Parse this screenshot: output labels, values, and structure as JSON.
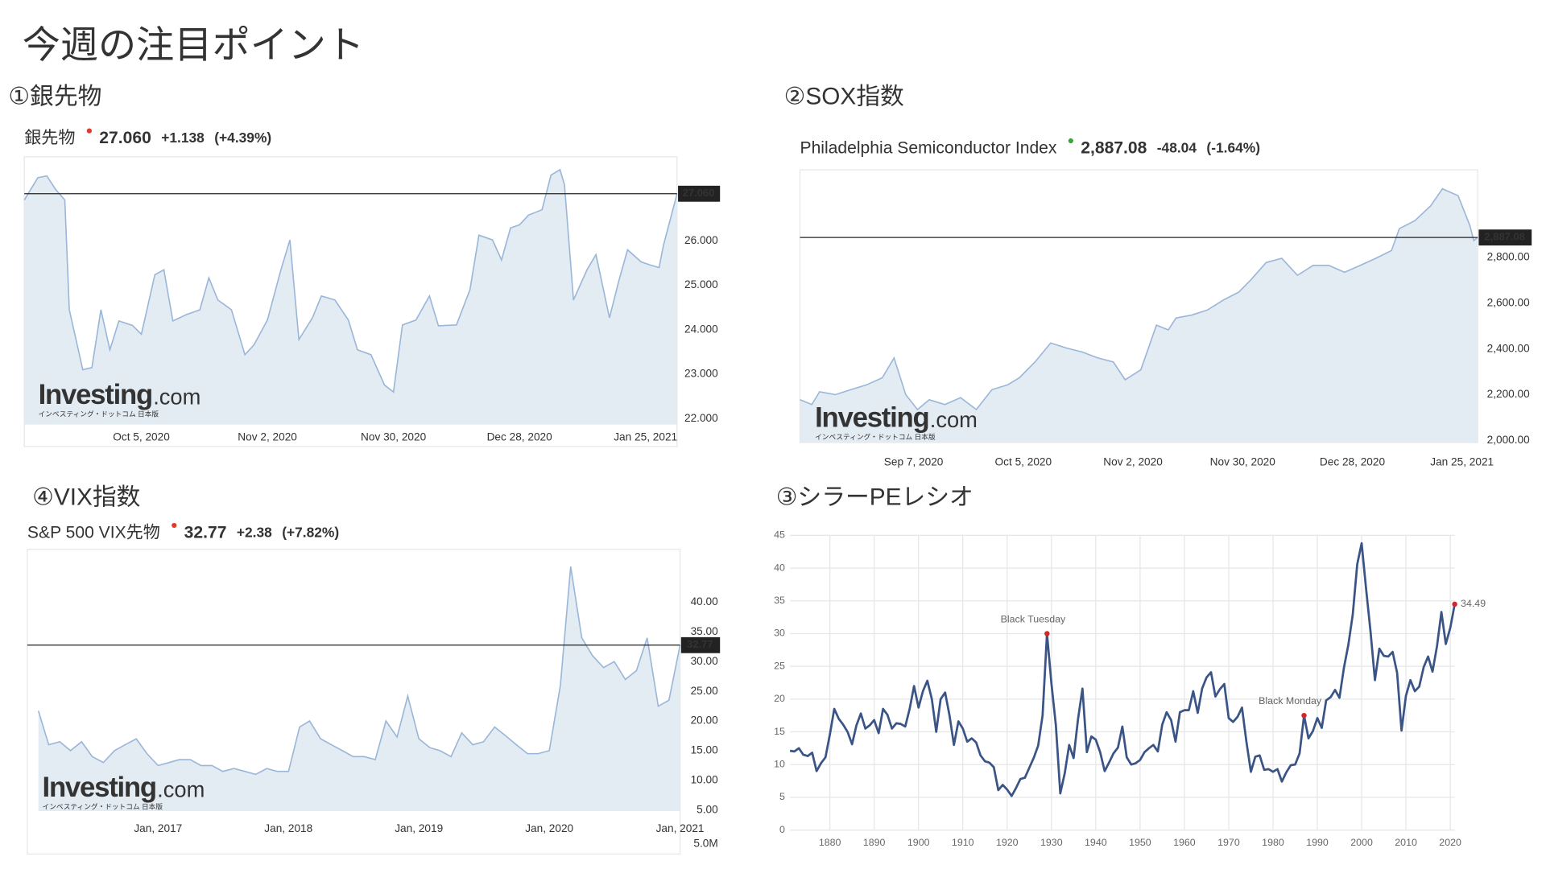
{
  "title": "今週の注目ポイント",
  "chart_data": [
    {
      "type": "area",
      "heading": "①銀先物",
      "name": "銀先物",
      "last": {
        "value": 27.06,
        "label": "27.060"
      },
      "change": {
        "value": 1.138,
        "label": "+1.138"
      },
      "change_pct": {
        "value": 4.39,
        "label": "(+4.39%)"
      },
      "change_color": "#e03a2f",
      "watermark": [
        "Investing",
        ".com",
        "インベスティング・ドットコム 日本版"
      ],
      "x": [
        "2020-09-09",
        "2020-09-12",
        "2020-09-14",
        "2020-09-16",
        "2020-09-18",
        "2020-09-19",
        "2020-09-22",
        "2020-09-24",
        "2020-09-26",
        "2020-09-28",
        "2020-09-30",
        "2020-10-03",
        "2020-10-05",
        "2020-10-08",
        "2020-10-10",
        "2020-10-12",
        "2020-10-15",
        "2020-10-18",
        "2020-10-20",
        "2020-10-22",
        "2020-10-25",
        "2020-10-28",
        "2020-10-30",
        "2020-11-02",
        "2020-11-05",
        "2020-11-07",
        "2020-11-09",
        "2020-11-12",
        "2020-11-14",
        "2020-11-17",
        "2020-11-20",
        "2020-11-22",
        "2020-11-25",
        "2020-11-28",
        "2020-11-30",
        "2020-12-02",
        "2020-12-05",
        "2020-12-08",
        "2020-12-10",
        "2020-12-14",
        "2020-12-17",
        "2020-12-19",
        "2020-12-22",
        "2020-12-24",
        "2020-12-26",
        "2020-12-28",
        "2020-12-30",
        "2021-01-02",
        "2021-01-04",
        "2021-01-06",
        "2021-01-07",
        "2021-01-09",
        "2021-01-12",
        "2021-01-14",
        "2021-01-17",
        "2021-01-19",
        "2021-01-21",
        "2021-01-24",
        "2021-01-26",
        "2021-01-28",
        "2021-01-29",
        "2021-02-01"
      ],
      "values": [
        26.92,
        27.42,
        27.46,
        27.15,
        26.92,
        24.45,
        23.1,
        23.15,
        24.45,
        23.55,
        24.2,
        24.1,
        23.9,
        25.24,
        25.35,
        24.2,
        24.34,
        24.45,
        25.17,
        24.67,
        24.45,
        23.44,
        23.66,
        24.22,
        25.35,
        26.02,
        23.78,
        24.27,
        24.76,
        24.67,
        24.22,
        23.55,
        23.44,
        22.76,
        22.6,
        24.11,
        24.22,
        24.76,
        24.09,
        24.11,
        24.9,
        26.13,
        26.02,
        25.57,
        26.29,
        26.36,
        26.58,
        26.7,
        27.48,
        27.6,
        27.26,
        24.67,
        25.35,
        25.69,
        24.27,
        25.08,
        25.8,
        25.53,
        25.46,
        25.4,
        25.91,
        27.06
      ],
      "color": "#9ab6d8",
      "fill": "#e3ebf3",
      "grid": false,
      "xlim": [
        "2020-09-09",
        "2021-02-01"
      ],
      "ylim": [
        21.87,
        27.89
      ],
      "yticks": [
        {
          "value": 22,
          "label": "22.000"
        },
        {
          "value": 23,
          "label": "23.000"
        },
        {
          "value": 24,
          "label": "24.000"
        },
        {
          "value": 25,
          "label": "25.000"
        },
        {
          "value": 26,
          "label": "26.000"
        }
      ],
      "xticks": [
        {
          "value": "2020-10-05",
          "label": "Oct 5, 2020"
        },
        {
          "value": "2020-11-02",
          "label": "Nov 2, 2020"
        },
        {
          "value": "2020-11-30",
          "label": "Nov 30, 2020"
        },
        {
          "value": "2020-12-28",
          "label": "Dec 28, 2020"
        },
        {
          "value": "2021-01-25",
          "label": "Jan 25, 2021"
        }
      ]
    },
    {
      "type": "area",
      "heading": "②SOX指数",
      "name": "Philadelphia Semiconductor Index",
      "last": {
        "value": 2887.08,
        "label": "2,887.08"
      },
      "change": {
        "value": -48.04,
        "label": "-48.04"
      },
      "change_pct": {
        "value": -1.64,
        "label": "(-1.64%)"
      },
      "change_color": "#3aa53a",
      "watermark": [
        "Investing",
        ".com",
        "インベスティング・ドットコム 日本版"
      ],
      "x": [
        "2020-08-09",
        "2020-08-12",
        "2020-08-14",
        "2020-08-18",
        "2020-08-22",
        "2020-08-26",
        "2020-08-30",
        "2020-09-02",
        "2020-09-05",
        "2020-09-08",
        "2020-09-11",
        "2020-09-15",
        "2020-09-19",
        "2020-09-23",
        "2020-09-27",
        "2020-10-01",
        "2020-10-04",
        "2020-10-08",
        "2020-10-12",
        "2020-10-16",
        "2020-10-20",
        "2020-10-24",
        "2020-10-28",
        "2020-10-31",
        "2020-11-04",
        "2020-11-08",
        "2020-11-11",
        "2020-11-13",
        "2020-11-17",
        "2020-11-21",
        "2020-11-25",
        "2020-11-29",
        "2020-12-02",
        "2020-12-06",
        "2020-12-10",
        "2020-12-14",
        "2020-12-18",
        "2020-12-22",
        "2020-12-26",
        "2020-12-30",
        "2021-01-03",
        "2021-01-07",
        "2021-01-09",
        "2021-01-13",
        "2021-01-17",
        "2021-01-20",
        "2021-01-24",
        "2021-01-27",
        "2021-01-28",
        "2021-01-29"
      ],
      "values": [
        2178,
        2157,
        2213,
        2200,
        2222,
        2243,
        2274,
        2361,
        2200,
        2135,
        2178,
        2157,
        2187,
        2135,
        2222,
        2243,
        2274,
        2343,
        2426,
        2404,
        2387,
        2361,
        2343,
        2265,
        2309,
        2504,
        2483,
        2535,
        2548,
        2570,
        2613,
        2648,
        2700,
        2778,
        2796,
        2722,
        2765,
        2765,
        2735,
        2765,
        2796,
        2830,
        2926,
        2961,
        3026,
        3100,
        3070,
        2939,
        2874,
        2887.08
      ],
      "color": "#9ab6d8",
      "fill": "#e3ebf3",
      "grid": false,
      "xlim": [
        "2020-08-09",
        "2021-01-29"
      ],
      "ylim": [
        1991,
        3183
      ],
      "yticks": [
        {
          "value": 2000,
          "label": "2,000.00"
        },
        {
          "value": 2200,
          "label": "2,200.00"
        },
        {
          "value": 2400,
          "label": "2,400.00"
        },
        {
          "value": 2600,
          "label": "2,600.00"
        },
        {
          "value": 2800,
          "label": "2,800.00"
        }
      ],
      "xticks": [
        {
          "value": "2020-09-07",
          "label": "Sep 7, 2020"
        },
        {
          "value": "2020-10-05",
          "label": "Oct 5, 2020"
        },
        {
          "value": "2020-11-02",
          "label": "Nov 2, 2020"
        },
        {
          "value": "2020-11-30",
          "label": "Nov 30, 2020"
        },
        {
          "value": "2020-12-28",
          "label": "Dec 28, 2020"
        },
        {
          "value": "2021-01-25",
          "label": "Jan 25, 2021"
        }
      ]
    },
    {
      "type": "area",
      "heading": "④VIX指数",
      "name": "S&P 500 VIX先物",
      "last": {
        "value": 32.77,
        "label": "32.77"
      },
      "change": {
        "value": 2.38,
        "label": "+2.38"
      },
      "change_pct": {
        "value": 7.82,
        "label": "(+7.82%)"
      },
      "change_color": "#e03a2f",
      "watermark": [
        "Investing",
        ".com",
        "インベスティング・ドットコム 日本版"
      ],
      "volume_label": "5.0M",
      "x": [
        "2016-02",
        "2016-03",
        "2016-04",
        "2016-05",
        "2016-06",
        "2016-07",
        "2016-08",
        "2016-09",
        "2016-10",
        "2016-11",
        "2016-12",
        "2017-01",
        "2017-02",
        "2017-03",
        "2017-04",
        "2017-05",
        "2017-06",
        "2017-07",
        "2017-08",
        "2017-09",
        "2017-10",
        "2017-11",
        "2017-12",
        "2018-01",
        "2018-02",
        "2018-03",
        "2018-04",
        "2018-05",
        "2018-06",
        "2018-07",
        "2018-08",
        "2018-09",
        "2018-10",
        "2018-11",
        "2018-12",
        "2019-01",
        "2019-02",
        "2019-03",
        "2019-04",
        "2019-05",
        "2019-06",
        "2019-07",
        "2019-08",
        "2019-09",
        "2019-10",
        "2019-11",
        "2019-12",
        "2020-01",
        "2020-02",
        "2020-03",
        "2020-04",
        "2020-05",
        "2020-06",
        "2020-07",
        "2020-08",
        "2020-09",
        "2020-10",
        "2020-11",
        "2020-12",
        "2021-01"
      ],
      "values": [
        21.7,
        16,
        16.5,
        15,
        16.5,
        14,
        13,
        15,
        16,
        17,
        14.5,
        12.5,
        13,
        13.5,
        13.5,
        12.5,
        12.5,
        11.5,
        12,
        11.5,
        11,
        12,
        11.5,
        11.5,
        19,
        20,
        17,
        16,
        15,
        14,
        14,
        13.5,
        20,
        17.3,
        24.2,
        17,
        15.5,
        15,
        14,
        18,
        16,
        16.5,
        19,
        17.5,
        16,
        14.5,
        14.5,
        15,
        26,
        46,
        34,
        31,
        29,
        30,
        27,
        28.5,
        34,
        22.5,
        23.5,
        32.77
      ],
      "color": "#9ab6d8",
      "fill": "#e3ebf3",
      "grid": false,
      "xlim": [
        "2016-01",
        "2021-01"
      ],
      "ylim": [
        4.83,
        48.9
      ],
      "yticks": [
        {
          "value": 5,
          "label": "5.00"
        },
        {
          "value": 10,
          "label": "10.00"
        },
        {
          "value": 15,
          "label": "15.00"
        },
        {
          "value": 20,
          "label": "20.00"
        },
        {
          "value": 25,
          "label": "25.00"
        },
        {
          "value": 30,
          "label": "30.00"
        },
        {
          "value": 35,
          "label": "35.00"
        },
        {
          "value": 40,
          "label": "40.00"
        }
      ],
      "xticks": [
        {
          "value": "2017-01",
          "label": "Jan, 2017"
        },
        {
          "value": "2018-01",
          "label": "Jan, 2018"
        },
        {
          "value": "2019-01",
          "label": "Jan, 2019"
        },
        {
          "value": "2020-01",
          "label": "Jan, 2020"
        },
        {
          "value": "2021-01",
          "label": "Jan, 2021"
        }
      ]
    },
    {
      "type": "line",
      "heading": "③シラーPEレシオ",
      "color": "#3a5485",
      "marker_color": "#d62728",
      "grid": true,
      "x": [
        1871,
        1872,
        1873,
        1874,
        1875,
        1876,
        1877,
        1878,
        1879,
        1880,
        1881,
        1882,
        1883,
        1884,
        1885,
        1886,
        1887,
        1888,
        1889,
        1890,
        1891,
        1892,
        1893,
        1894,
        1895,
        1896,
        1897,
        1898,
        1899,
        1900,
        1901,
        1902,
        1903,
        1904,
        1905,
        1906,
        1907,
        1908,
        1909,
        1910,
        1911,
        1912,
        1913,
        1914,
        1915,
        1916,
        1917,
        1918,
        1919,
        1920,
        1921,
        1922,
        1923,
        1924,
        1925,
        1926,
        1927,
        1928,
        1929,
        1930,
        1931,
        1932,
        1933,
        1934,
        1935,
        1936,
        1937,
        1938,
        1939,
        1940,
        1941,
        1942,
        1943,
        1944,
        1945,
        1946,
        1947,
        1948,
        1949,
        1950,
        1951,
        1952,
        1953,
        1954,
        1955,
        1956,
        1957,
        1958,
        1959,
        1960,
        1961,
        1962,
        1963,
        1964,
        1965,
        1966,
        1967,
        1968,
        1969,
        1970,
        1971,
        1972,
        1973,
        1974,
        1975,
        1976,
        1977,
        1978,
        1979,
        1980,
        1981,
        1982,
        1983,
        1984,
        1985,
        1986,
        1987,
        1988,
        1989,
        1990,
        1991,
        1992,
        1993,
        1994,
        1995,
        1996,
        1997,
        1998,
        1999,
        2000,
        2001,
        2002,
        2003,
        2004,
        2005,
        2006,
        2007,
        2008,
        2009,
        2010,
        2011,
        2012,
        2013,
        2014,
        2015,
        2016,
        2017,
        2018,
        2019,
        2020,
        2021
      ],
      "values": [
        12.1,
        12.0,
        12.5,
        11.5,
        11.3,
        11.8,
        9.0,
        10.2,
        11.1,
        14.6,
        18.5,
        17.0,
        16.1,
        15.0,
        13.1,
        16.0,
        17.8,
        15.5,
        16.0,
        16.8,
        14.8,
        18.5,
        17.6,
        15.5,
        16.3,
        16.2,
        15.8,
        18.5,
        22.0,
        18.7,
        21.2,
        22.8,
        20.0,
        15.0,
        20.0,
        21.0,
        17.5,
        13.0,
        16.6,
        15.5,
        13.5,
        14.0,
        13.4,
        11.4,
        10.5,
        10.3,
        9.6,
        6.1,
        6.9,
        6.2,
        5.2,
        6.4,
        7.8,
        8.0,
        9.5,
        11.0,
        12.9,
        17.5,
        30.0,
        22.3,
        16.0,
        5.6,
        8.7,
        13.0,
        11.0,
        17.0,
        21.6,
        11.9,
        14.3,
        13.8,
        11.9,
        9.0,
        10.3,
        11.7,
        12.6,
        15.8,
        11.1,
        10.0,
        10.2,
        10.7,
        11.9,
        12.5,
        13.0,
        12.0,
        16.1,
        18.0,
        16.8,
        13.5,
        18.0,
        18.3,
        18.3,
        21.2,
        17.9,
        21.6,
        23.3,
        24.1,
        20.4,
        21.5,
        22.3,
        17.1,
        16.5,
        17.3,
        18.7,
        13.5,
        8.9,
        11.2,
        11.4,
        9.2,
        9.3,
        8.9,
        9.3,
        7.4,
        8.8,
        9.9,
        10.0,
        11.7,
        17.5,
        14.0,
        15.1,
        17.1,
        15.6,
        19.8,
        20.3,
        21.4,
        20.2,
        24.8,
        28.3,
        32.9,
        40.6,
        43.8,
        36.9,
        30.3,
        22.9,
        27.7,
        26.6,
        26.5,
        27.2,
        24.0,
        15.2,
        20.5,
        22.9,
        21.2,
        21.9,
        24.9,
        26.5,
        24.2,
        28.1,
        33.3,
        28.4,
        30.9,
        34.49
      ],
      "annotations": [
        {
          "text": "Black Tuesday",
          "x": 1929
        },
        {
          "text": "Black Monday",
          "x": 1987
        },
        {
          "text": "34.49",
          "x": 2021
        }
      ],
      "xlim": [
        1871,
        2021
      ],
      "ylim": [
        0,
        45
      ],
      "yticks": [
        0,
        5,
        10,
        15,
        20,
        25,
        30,
        35,
        40,
        45
      ],
      "xticks": [
        1880,
        1890,
        1900,
        1910,
        1920,
        1930,
        1940,
        1950,
        1960,
        1970,
        1980,
        1990,
        2000,
        2010,
        2020
      ]
    }
  ]
}
